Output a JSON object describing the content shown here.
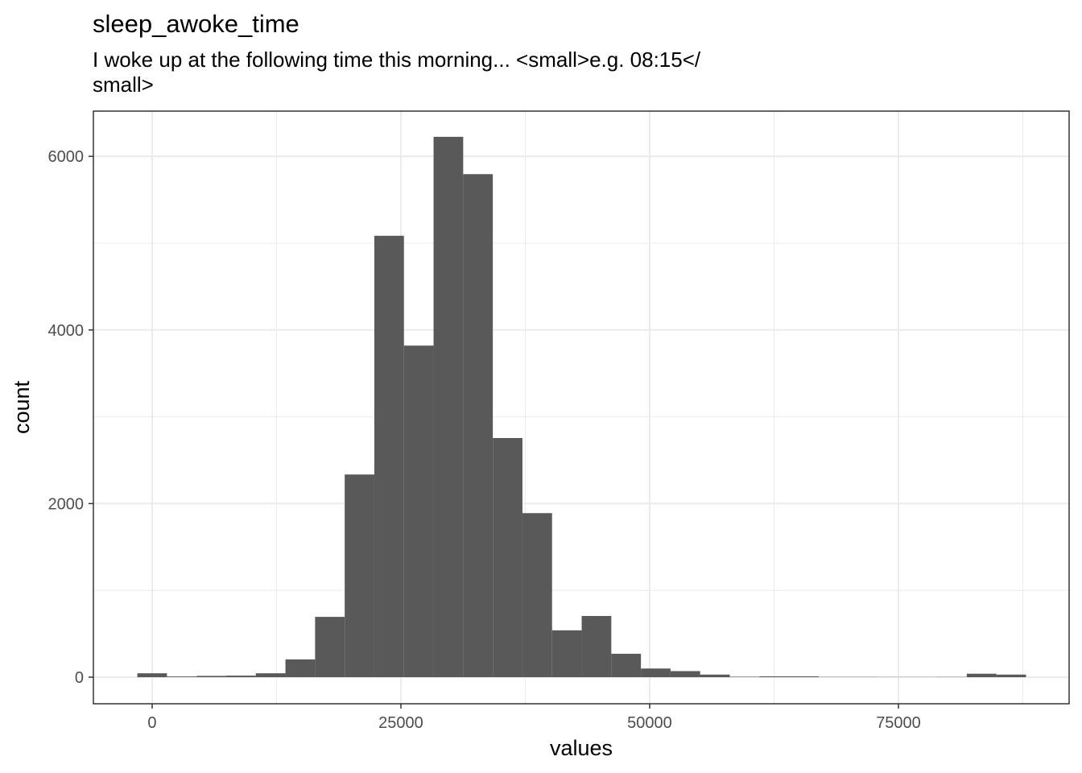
{
  "chart_data": {
    "type": "histogram",
    "title": "sleep_awoke_time",
    "subtitle": [
      "I woke up at the following time this morning... <small>e.g. 08:15</",
      "small>"
    ],
    "x_label": "values",
    "y_label": "count",
    "bins": [
      -1489,
      1488,
      4465,
      7442,
      10419,
      13396,
      16373,
      19350,
      22327,
      25304,
      28281,
      31258,
      34235,
      37212,
      40189,
      43166,
      46143,
      49120,
      52097,
      55074,
      58051,
      61028,
      64005,
      66982,
      69959,
      72936,
      75913,
      78890,
      81867,
      84844,
      87821
    ],
    "values": [
      45,
      8,
      15,
      18,
      45,
      205,
      695,
      2335,
      5085,
      3820,
      6225,
      5795,
      2755,
      1890,
      540,
      705,
      270,
      100,
      70,
      30,
      5,
      10,
      10,
      3,
      3,
      2,
      2,
      3,
      40,
      30
    ],
    "color": "#595959",
    "xlim": [
      -5906,
      92152
    ],
    "ylim": [
      -306,
      6521
    ],
    "xticks": [
      0,
      25000,
      50000,
      75000
    ],
    "yticks": [
      0,
      2000,
      4000,
      6000
    ],
    "x_minor_grid": [
      12500,
      37500,
      62500,
      87500
    ],
    "y_minor_grid": [
      1000,
      3000,
      5000
    ],
    "grid": true
  }
}
